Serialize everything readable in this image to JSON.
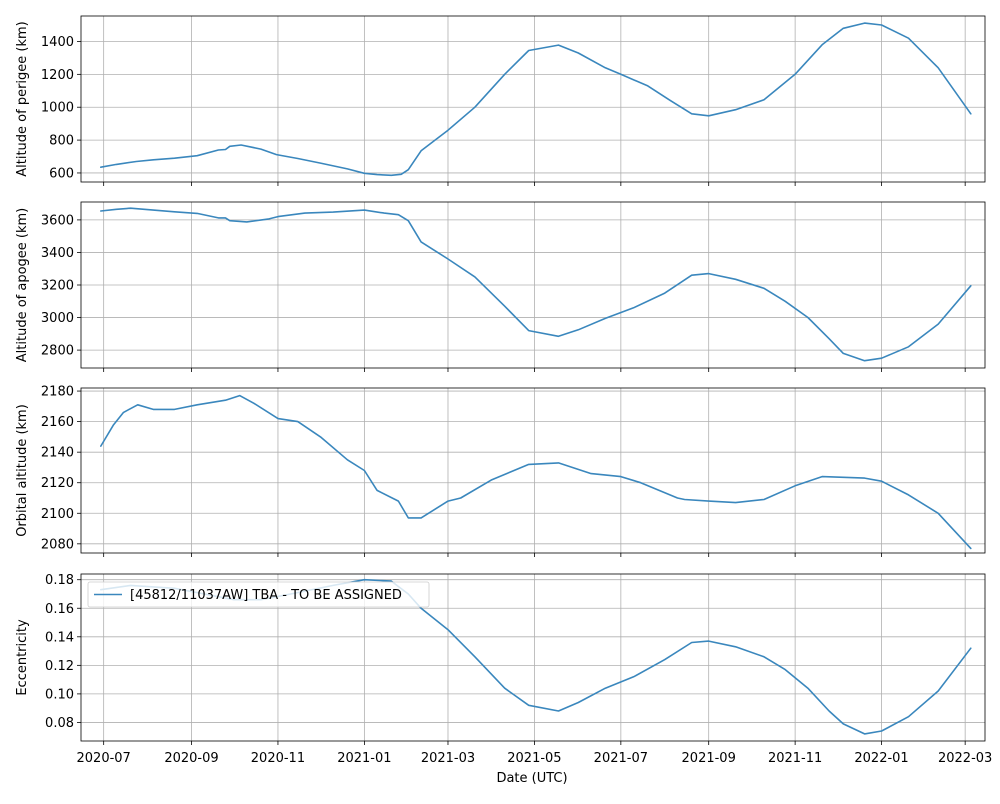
{
  "chart_data": {
    "type": "line",
    "xlabel": "Date (UTC)",
    "x_ticks": [
      "2020-07",
      "2020-09",
      "2020-11",
      "2021-01",
      "2021-03",
      "2021-05",
      "2021-07",
      "2021-09",
      "2021-11",
      "2022-01",
      "2022-03"
    ],
    "xlim": [
      "2020-06-15",
      "2022-03-15"
    ],
    "series_color": "#3a87bd",
    "legend": {
      "label": "[45812/11037AW] TBA - TO BE ASSIGNED",
      "placement": "upper-left",
      "panel": 3
    },
    "panels": [
      {
        "ylabel": "Altitude of perigee (km)",
        "ylim": [
          545,
          1555
        ],
        "yticks": [
          600,
          800,
          1000,
          1200,
          1400
        ],
        "points": [
          [
            "2020-06-29",
            635
          ],
          [
            "2020-07-10",
            652
          ],
          [
            "2020-07-24",
            670
          ],
          [
            "2020-08-05",
            680
          ],
          [
            "2020-08-20",
            690
          ],
          [
            "2020-09-05",
            705
          ],
          [
            "2020-09-20",
            740
          ],
          [
            "2020-09-25",
            743
          ],
          [
            "2020-09-28",
            762
          ],
          [
            "2020-10-06",
            770
          ],
          [
            "2020-10-20",
            745
          ],
          [
            "2020-10-31",
            712
          ],
          [
            "2020-11-15",
            688
          ],
          [
            "2020-12-01",
            660
          ],
          [
            "2020-12-20",
            625
          ],
          [
            "2021-01-01",
            598
          ],
          [
            "2021-01-10",
            590
          ],
          [
            "2021-01-20",
            586
          ],
          [
            "2021-01-27",
            592
          ],
          [
            "2021-02-01",
            620
          ],
          [
            "2021-02-10",
            735
          ],
          [
            "2021-03-01",
            860
          ],
          [
            "2021-03-20",
            1000
          ],
          [
            "2021-04-10",
            1200
          ],
          [
            "2021-04-27",
            1345
          ],
          [
            "2021-05-18",
            1378
          ],
          [
            "2021-06-01",
            1330
          ],
          [
            "2021-06-20",
            1240
          ],
          [
            "2021-07-01",
            1200
          ],
          [
            "2021-07-20",
            1130
          ],
          [
            "2021-08-05",
            1040
          ],
          [
            "2021-08-20",
            960
          ],
          [
            "2021-09-01",
            948
          ],
          [
            "2021-09-20",
            985
          ],
          [
            "2021-10-10",
            1045
          ],
          [
            "2021-11-01",
            1200
          ],
          [
            "2021-11-20",
            1380
          ],
          [
            "2021-12-05",
            1480
          ],
          [
            "2021-12-20",
            1512
          ],
          [
            "2022-01-01",
            1500
          ],
          [
            "2022-01-20",
            1420
          ],
          [
            "2022-02-10",
            1240
          ],
          [
            "2022-03-05",
            960
          ]
        ]
      },
      {
        "ylabel": "Altitude of apogee (km)",
        "ylim": [
          2690,
          3710
        ],
        "yticks": [
          2800,
          3000,
          3200,
          3400,
          3600
        ],
        "points": [
          [
            "2020-06-29",
            3655
          ],
          [
            "2020-07-10",
            3665
          ],
          [
            "2020-07-20",
            3672
          ],
          [
            "2020-08-05",
            3660
          ],
          [
            "2020-08-20",
            3650
          ],
          [
            "2020-09-05",
            3640
          ],
          [
            "2020-09-20",
            3612
          ],
          [
            "2020-09-25",
            3612
          ],
          [
            "2020-09-28",
            3595
          ],
          [
            "2020-10-10",
            3588
          ],
          [
            "2020-10-25",
            3605
          ],
          [
            "2020-11-01",
            3620
          ],
          [
            "2020-11-20",
            3642
          ],
          [
            "2020-12-10",
            3648
          ],
          [
            "2021-01-01",
            3660
          ],
          [
            "2021-01-15",
            3642
          ],
          [
            "2021-01-25",
            3632
          ],
          [
            "2021-02-01",
            3595
          ],
          [
            "2021-02-10",
            3465
          ],
          [
            "2021-03-01",
            3360
          ],
          [
            "2021-03-20",
            3250
          ],
          [
            "2021-04-10",
            3070
          ],
          [
            "2021-04-27",
            2920
          ],
          [
            "2021-05-18",
            2885
          ],
          [
            "2021-06-01",
            2925
          ],
          [
            "2021-06-20",
            2995
          ],
          [
            "2021-07-10",
            3060
          ],
          [
            "2021-08-01",
            3150
          ],
          [
            "2021-08-20",
            3260
          ],
          [
            "2021-09-01",
            3270
          ],
          [
            "2021-09-20",
            3235
          ],
          [
            "2021-10-10",
            3180
          ],
          [
            "2021-10-25",
            3100
          ],
          [
            "2021-11-10",
            3000
          ],
          [
            "2021-11-25",
            2870
          ],
          [
            "2021-12-05",
            2780
          ],
          [
            "2021-12-20",
            2735
          ],
          [
            "2022-01-01",
            2750
          ],
          [
            "2022-01-20",
            2820
          ],
          [
            "2022-02-10",
            2960
          ],
          [
            "2022-03-05",
            3195
          ]
        ]
      },
      {
        "ylabel": "Orbital altitude (km)",
        "ylim": [
          2074,
          2182
        ],
        "yticks": [
          2080,
          2100,
          2120,
          2140,
          2160,
          2180
        ],
        "points": [
          [
            "2020-06-29",
            2144
          ],
          [
            "2020-07-08",
            2158
          ],
          [
            "2020-07-15",
            2166
          ],
          [
            "2020-07-25",
            2171
          ],
          [
            "2020-08-05",
            2168
          ],
          [
            "2020-08-20",
            2168
          ],
          [
            "2020-09-05",
            2171
          ],
          [
            "2020-09-25",
            2174
          ],
          [
            "2020-10-05",
            2177
          ],
          [
            "2020-10-15",
            2172
          ],
          [
            "2020-11-01",
            2162
          ],
          [
            "2020-11-15",
            2160
          ],
          [
            "2020-12-01",
            2150
          ],
          [
            "2020-12-20",
            2135
          ],
          [
            "2021-01-01",
            2128
          ],
          [
            "2021-01-10",
            2115
          ],
          [
            "2021-01-25",
            2108
          ],
          [
            "2021-02-01",
            2097
          ],
          [
            "2021-02-10",
            2097
          ],
          [
            "2021-03-01",
            2108
          ],
          [
            "2021-03-10",
            2110
          ],
          [
            "2021-04-01",
            2122
          ],
          [
            "2021-04-27",
            2132
          ],
          [
            "2021-05-18",
            2133
          ],
          [
            "2021-06-10",
            2126
          ],
          [
            "2021-07-01",
            2124
          ],
          [
            "2021-07-15",
            2120
          ],
          [
            "2021-08-10",
            2110
          ],
          [
            "2021-08-15",
            2109
          ],
          [
            "2021-09-01",
            2108
          ],
          [
            "2021-09-20",
            2107
          ],
          [
            "2021-10-10",
            2109
          ],
          [
            "2021-11-01",
            2118
          ],
          [
            "2021-11-20",
            2124
          ],
          [
            "2021-12-20",
            2123
          ],
          [
            "2022-01-01",
            2121
          ],
          [
            "2022-01-20",
            2112
          ],
          [
            "2022-02-10",
            2100
          ],
          [
            "2022-03-05",
            2077
          ]
        ]
      },
      {
        "ylabel": "Eccentricity",
        "ylim": [
          0.067,
          0.184
        ],
        "yticks": [
          "0.08",
          "0.10",
          "0.12",
          "0.14",
          "0.16",
          "0.18"
        ],
        "points": [
          [
            "2020-06-29",
            0.173
          ],
          [
            "2020-07-20",
            0.176
          ],
          [
            "2020-08-20",
            0.174
          ],
          [
            "2020-09-10",
            0.17
          ],
          [
            "2020-10-01",
            0.166
          ],
          [
            "2020-10-20",
            0.166
          ],
          [
            "2020-11-10",
            0.17
          ],
          [
            "2020-12-10",
            0.176
          ],
          [
            "2021-01-01",
            0.18
          ],
          [
            "2021-01-20",
            0.179
          ],
          [
            "2021-02-01",
            0.17
          ],
          [
            "2021-02-10",
            0.16
          ],
          [
            "2021-03-01",
            0.145
          ],
          [
            "2021-03-20",
            0.126
          ],
          [
            "2021-04-10",
            0.104
          ],
          [
            "2021-04-27",
            0.092
          ],
          [
            "2021-05-18",
            0.088
          ],
          [
            "2021-06-01",
            0.094
          ],
          [
            "2021-06-20",
            0.104
          ],
          [
            "2021-07-10",
            0.112
          ],
          [
            "2021-08-01",
            0.124
          ],
          [
            "2021-08-20",
            0.136
          ],
          [
            "2021-09-01",
            0.137
          ],
          [
            "2021-09-20",
            0.133
          ],
          [
            "2021-10-10",
            0.126
          ],
          [
            "2021-10-25",
            0.117
          ],
          [
            "2021-11-10",
            0.104
          ],
          [
            "2021-11-25",
            0.088
          ],
          [
            "2021-12-05",
            0.079
          ],
          [
            "2021-12-20",
            0.072
          ],
          [
            "2022-01-01",
            0.074
          ],
          [
            "2022-01-20",
            0.084
          ],
          [
            "2022-02-10",
            0.102
          ],
          [
            "2022-03-05",
            0.132
          ]
        ]
      }
    ]
  }
}
